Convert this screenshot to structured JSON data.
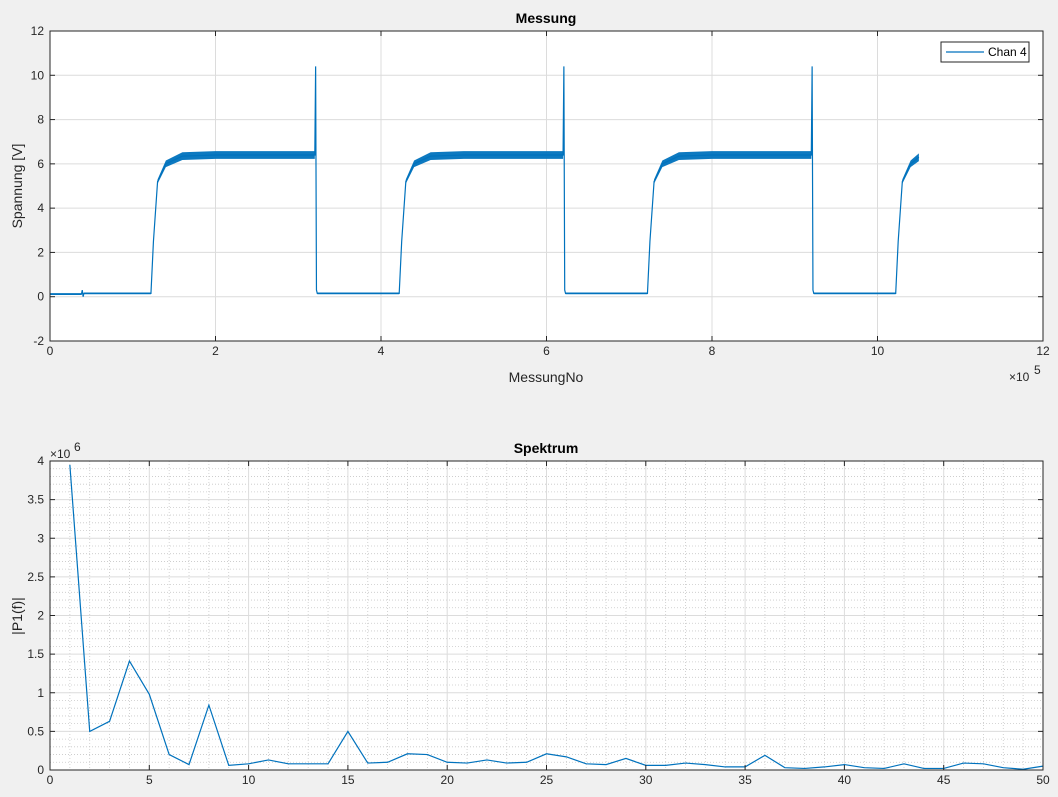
{
  "chart_data": [
    {
      "type": "line",
      "title": "Messung",
      "xlabel": "MessungNo",
      "ylabel": "Spannung [V]",
      "x_exponent_base": "×10",
      "x_exponent_power": "5",
      "xlim": [
        0,
        12
      ],
      "ylim": [
        -2,
        12
      ],
      "xticks": [
        0,
        2,
        4,
        6,
        8,
        10,
        12
      ],
      "yticks": [
        -2,
        0,
        2,
        4,
        6,
        8,
        10,
        12
      ],
      "grid": true,
      "legend_position": "top-right",
      "color": "#0072BD",
      "series": [
        {
          "name": "Chan 4",
          "x": [
            0,
            0.38,
            0.39,
            0.4,
            0.41,
            1.22,
            1.25,
            1.3,
            1.4,
            1.6,
            2.0,
            3.2,
            3.21,
            3.22,
            3.23,
            4.22,
            4.25,
            4.3,
            4.4,
            4.6,
            5.0,
            6.2,
            6.21,
            6.22,
            6.23,
            7.22,
            7.25,
            7.3,
            7.4,
            7.6,
            8.0,
            9.2,
            9.21,
            9.22,
            9.23,
            10.22,
            10.25,
            10.3,
            10.4,
            10.5
          ],
          "y": [
            0.12,
            0.12,
            0.3,
            0.0,
            0.15,
            0.15,
            2.5,
            5.2,
            6.0,
            6.35,
            6.4,
            6.4,
            10.4,
            0.3,
            0.15,
            0.15,
            2.5,
            5.2,
            6.0,
            6.35,
            6.4,
            6.4,
            10.4,
            0.3,
            0.15,
            0.15,
            2.5,
            5.2,
            6.0,
            6.35,
            6.4,
            6.4,
            10.4,
            0.3,
            0.15,
            0.15,
            2.5,
            5.2,
            6.0,
            6.3
          ],
          "noise_band": [
            0.08,
            0.08,
            0.0,
            0.0,
            0.08,
            0.08,
            0.0,
            0.2,
            0.3,
            0.35,
            0.35,
            0.35,
            0.0,
            0.0,
            0.08,
            0.08,
            0.0,
            0.2,
            0.3,
            0.35,
            0.35,
            0.35,
            0.0,
            0.0,
            0.08,
            0.08,
            0.0,
            0.2,
            0.3,
            0.35,
            0.35,
            0.35,
            0.0,
            0.0,
            0.08,
            0.08,
            0.0,
            0.2,
            0.3,
            0.35
          ]
        }
      ]
    },
    {
      "type": "line",
      "title": "Spektrum",
      "xlabel": "",
      "ylabel": "|P1(f)|",
      "y_exponent_base": "×10",
      "y_exponent_power": "6",
      "xlim": [
        0,
        50
      ],
      "ylim": [
        0,
        4
      ],
      "xticks": [
        0,
        5,
        10,
        15,
        20,
        25,
        30,
        35,
        40,
        45,
        50
      ],
      "yticks": [
        0,
        0.5,
        1,
        1.5,
        2,
        2.5,
        3,
        3.5,
        4
      ],
      "grid": true,
      "minor_grid": true,
      "color": "#0072BD",
      "series": [
        {
          "x": [
            1,
            2,
            3,
            4,
            5,
            6,
            7,
            8,
            9,
            10,
            11,
            12,
            13,
            14,
            15,
            16,
            17,
            18,
            19,
            20,
            21,
            22,
            23,
            24,
            25,
            26,
            27,
            28,
            29,
            30,
            31,
            32,
            33,
            34,
            35,
            36,
            37,
            38,
            39,
            40,
            41,
            42,
            43,
            44,
            45,
            46,
            47,
            48,
            49,
            50
          ],
          "y": [
            3.95,
            0.5,
            0.63,
            1.41,
            0.98,
            0.2,
            0.07,
            0.84,
            0.06,
            0.08,
            0.13,
            0.08,
            0.08,
            0.08,
            0.5,
            0.09,
            0.1,
            0.21,
            0.2,
            0.1,
            0.09,
            0.13,
            0.09,
            0.1,
            0.21,
            0.17,
            0.08,
            0.07,
            0.15,
            0.06,
            0.06,
            0.09,
            0.07,
            0.04,
            0.04,
            0.19,
            0.03,
            0.02,
            0.04,
            0.07,
            0.03,
            0.02,
            0.08,
            0.02,
            0.02,
            0.09,
            0.08,
            0.03,
            0.01,
            0.05
          ]
        }
      ]
    }
  ]
}
